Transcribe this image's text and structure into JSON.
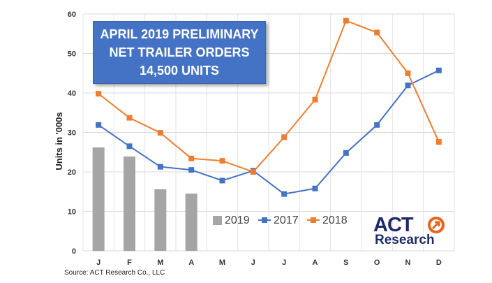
{
  "callout": {
    "line1": "APRIL 2019 PRELIMINARY",
    "line2": "NET TRAILER ORDERS",
    "line3": "14,500 UNITS"
  },
  "source": "Source: ACT Research Co., LLC",
  "logo": {
    "act": "ACT",
    "research": "Research"
  },
  "chart_data": {
    "type": "bar",
    "categories": [
      "J",
      "F",
      "M",
      "A",
      "M",
      "J",
      "J",
      "A",
      "S",
      "O",
      "N",
      "D"
    ],
    "ylabel": "Units in '000s",
    "ylim": [
      0,
      60
    ],
    "yticks": [
      0,
      10,
      20,
      30,
      40,
      50,
      60
    ],
    "grid": true,
    "legend_position": "bottom-center",
    "series": [
      {
        "name": "2019",
        "type": "bar",
        "color": "#a5a5a5",
        "values": [
          26.2,
          23.9,
          15.6,
          14.5,
          null,
          null,
          null,
          null,
          null,
          null,
          null,
          null
        ]
      },
      {
        "name": "2017",
        "type": "line",
        "color": "#4472c4",
        "values": [
          31.9,
          26.5,
          21.3,
          20.5,
          17.8,
          20.3,
          14.4,
          15.8,
          24.8,
          31.9,
          41.9,
          45.7
        ]
      },
      {
        "name": "2018",
        "type": "line",
        "color": "#ed7d31",
        "values": [
          39.8,
          33.7,
          29.9,
          23.4,
          22.8,
          20.0,
          28.8,
          38.3,
          58.3,
          55.3,
          45.0,
          27.6
        ]
      }
    ]
  }
}
